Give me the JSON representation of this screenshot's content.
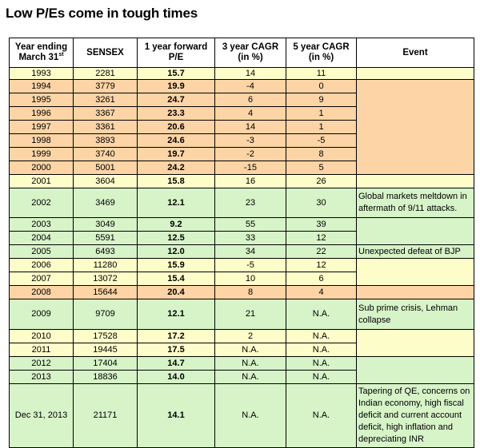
{
  "title": "Low P/Es come in tough times",
  "columns": [
    "Year ending March 31",
    "SENSEX",
    "1 year forward P/E",
    "3 year CAGR (in %)",
    "5 year CAGR (in %)",
    "Event"
  ],
  "header_lines": {
    "year_l1": "Year ending",
    "year_l2": "March 31",
    "year_sup": "st",
    "sensex": "SENSEX",
    "pe_l1": "1 year forward",
    "pe_l2": "P/E",
    "cagr3_l1": "3 year CAGR",
    "cagr3_l2": "(in %)",
    "cagr5_l1": "5 year CAGR",
    "cagr5_l2": "(in %)",
    "event": "Event"
  },
  "rows": [
    {
      "year": "1993",
      "sensex": "2281",
      "pe": "15.7",
      "cagr3": "14",
      "cagr5": "11",
      "event": ""
    },
    {
      "year": "1994",
      "sensex": "3779",
      "pe": "19.9",
      "cagr3": "-4",
      "cagr5": "0",
      "event": ""
    },
    {
      "year": "1995",
      "sensex": "3261",
      "pe": "24.7",
      "cagr3": "6",
      "cagr5": "9",
      "event": ""
    },
    {
      "year": "1996",
      "sensex": "3367",
      "pe": "23.3",
      "cagr3": "4",
      "cagr5": "1",
      "event": ""
    },
    {
      "year": "1997",
      "sensex": "3361",
      "pe": "20.6",
      "cagr3": "14",
      "cagr5": "1",
      "event": ""
    },
    {
      "year": "1998",
      "sensex": "3893",
      "pe": "24.6",
      "cagr3": "-3",
      "cagr5": "-5",
      "event": ""
    },
    {
      "year": "1999",
      "sensex": "3740",
      "pe": "19.7",
      "cagr3": "-2",
      "cagr5": "8",
      "event": ""
    },
    {
      "year": "2000",
      "sensex": "5001",
      "pe": "24.2",
      "cagr3": "-15",
      "cagr5": "5",
      "event": ""
    },
    {
      "year": "2001",
      "sensex": "3604",
      "pe": "15.8",
      "cagr3": "16",
      "cagr5": "26",
      "event": ""
    },
    {
      "year": "2002",
      "sensex": "3469",
      "pe": "12.1",
      "cagr3": "23",
      "cagr5": "30",
      "event": "Global markets meltdown in aftermath of 9/11 attacks."
    },
    {
      "year": "2003",
      "sensex": "3049",
      "pe": "9.2",
      "cagr3": "55",
      "cagr5": "39",
      "event": ""
    },
    {
      "year": "2004",
      "sensex": "5591",
      "pe": "12.5",
      "cagr3": "33",
      "cagr5": "12",
      "event": ""
    },
    {
      "year": "2005",
      "sensex": "6493",
      "pe": "12.0",
      "cagr3": "34",
      "cagr5": "22",
      "event": "Unexpected defeat of BJP"
    },
    {
      "year": "2006",
      "sensex": "11280",
      "pe": "15.9",
      "cagr3": "-5",
      "cagr5": "12",
      "event": ""
    },
    {
      "year": "2007",
      "sensex": "13072",
      "pe": "15.4",
      "cagr3": "10",
      "cagr5": "6",
      "event": ""
    },
    {
      "year": "2008",
      "sensex": "15644",
      "pe": "20.4",
      "cagr3": "8",
      "cagr5": "4",
      "event": ""
    },
    {
      "year": "2009",
      "sensex": "9709",
      "pe": "12.1",
      "cagr3": "21",
      "cagr5": "N.A.",
      "event": "Sub prime crisis, Lehman collapse"
    },
    {
      "year": "2010",
      "sensex": "17528",
      "pe": "17.2",
      "cagr3": "2",
      "cagr5": "N.A.",
      "event": ""
    },
    {
      "year": "2011",
      "sensex": "19445",
      "pe": "17.5",
      "cagr3": "N.A.",
      "cagr5": "N.A.",
      "event": ""
    },
    {
      "year": "2012",
      "sensex": "17404",
      "pe": "14.7",
      "cagr3": "N.A.",
      "cagr5": "N.A.",
      "event": ""
    },
    {
      "year": "2013",
      "sensex": "18836",
      "pe": "14.0",
      "cagr3": "N.A.",
      "cagr5": "N.A.",
      "event": ""
    },
    {
      "year": "Dec 31, 2013",
      "sensex": "21171",
      "pe": "14.1",
      "cagr3": "N.A.",
      "cagr5": "N.A.",
      "event": "Tapering of QE, concerns on Indian economy, high fiscal deficit and current account deficit, high inflation and depreciating INR"
    }
  ],
  "colors": {
    "yellow": "#fdfdc9",
    "orange": "#fcd4a6",
    "green": "#d7f3c8"
  }
}
